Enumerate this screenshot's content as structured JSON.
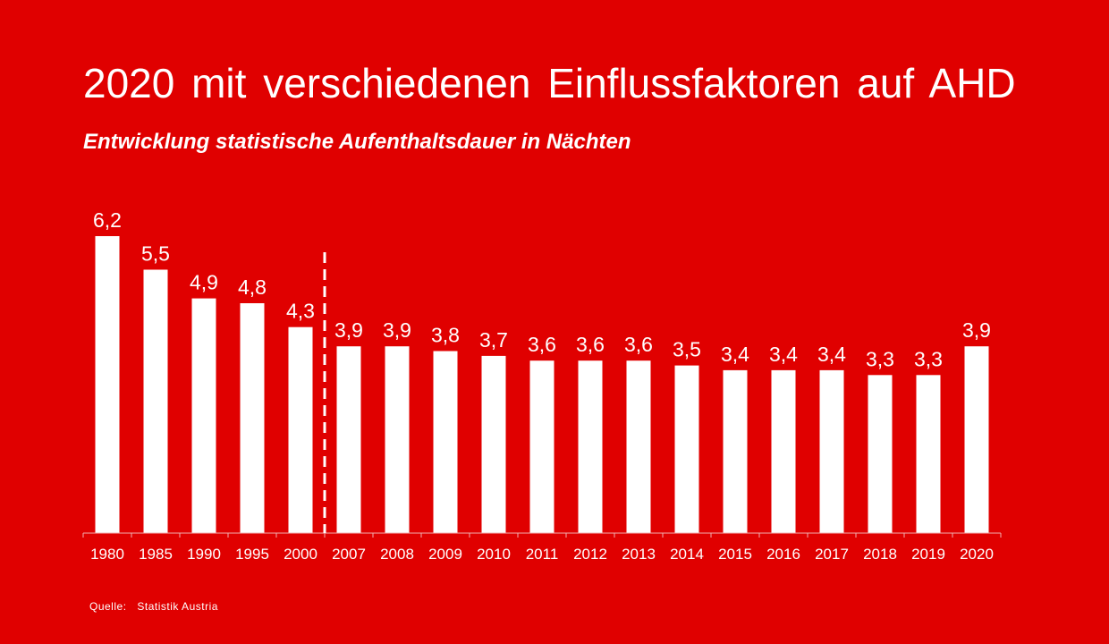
{
  "chart_data": {
    "type": "bar",
    "title": "2020 mit verschiedenen Einflussfaktoren auf AHD",
    "subtitle": "Entwicklung statistische Aufenthaltsdauer in Nächten",
    "categories": [
      "1980",
      "1985",
      "1990",
      "1995",
      "2000",
      "2007",
      "2008",
      "2009",
      "2010",
      "2011",
      "2012",
      "2013",
      "2014",
      "2015",
      "2016",
      "2017",
      "2018",
      "2019",
      "2020"
    ],
    "values": [
      6.2,
      5.5,
      4.9,
      4.8,
      4.3,
      3.9,
      3.9,
      3.8,
      3.7,
      3.6,
      3.6,
      3.6,
      3.5,
      3.4,
      3.4,
      3.4,
      3.3,
      3.3,
      3.9
    ],
    "value_labels": [
      "6,2",
      "5,5",
      "4,9",
      "4,8",
      "4,3",
      "3,9",
      "3,9",
      "3,8",
      "3,7",
      "3,6",
      "3,6",
      "3,6",
      "3,5",
      "3,4",
      "3,4",
      "3,4",
      "3,3",
      "3,3",
      "3,9"
    ],
    "ylim": [
      0,
      6.2
    ],
    "grid": false,
    "legend": "none",
    "divider_after": "2000",
    "bar_color": "#ffffff",
    "background_color": "#e00000"
  },
  "source": {
    "label": "Quelle:",
    "value": "Statistik Austria"
  }
}
